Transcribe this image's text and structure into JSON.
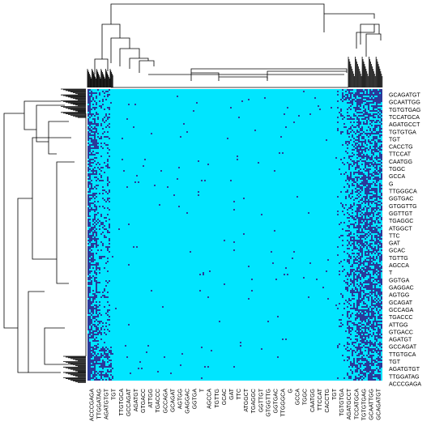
{
  "chart_data": {
    "type": "heatmap",
    "title": "",
    "xlabel": "",
    "ylabel": "",
    "colors": {
      "background": "#00e5ff",
      "hit": "#2a3a9a",
      "dendrogram": "#000000"
    },
    "x_labels": [
      "ACCCGAGA",
      "TTGGATAG",
      "AGATGTGT",
      "TGT",
      "TTGTGCA",
      "GCCAGAT",
      "AGATGT",
      "GTGACC",
      "ATTGG",
      "TGACCC",
      "GCCAGA",
      "GCAGAT",
      "AGTGG",
      "GAGGAC",
      "GGTGA",
      "T",
      "AGCCA",
      "TGTTG",
      "GCAC",
      "GAT",
      "TTC",
      "ATGGCT",
      "TGAGGC",
      "GGTTGT",
      "GTGGTTG",
      "GGTGAC",
      "TTGGGCA",
      "G",
      "GCCA",
      "TGGC",
      "CAATGG",
      "TTCCAT",
      "CACCTG",
      "TGT",
      "TGTGTGA",
      "AGATGCCT",
      "TCCATGCA",
      "TGTGTGAG",
      "GCAATTGG",
      "GCAGATGT"
    ],
    "y_labels": [
      "GCAGATGT",
      "GCAATTGG",
      "TGTGTGAG",
      "TCCATGCA",
      "AGATGCCT",
      "TGTGTGA",
      "TGT",
      "CACCTG",
      "TTCCAT",
      "CAATGG",
      "TGGC",
      "GCCA",
      "G",
      "TTGGGCA",
      "GGTGAC",
      "GTGGTTG",
      "GGTTGT",
      "TGAGGC",
      "ATGGCT",
      "TTC",
      "GAT",
      "GCAC",
      "TGTTG",
      "AGCCA",
      "T",
      "GGTGA",
      "GAGGAC",
      "AGTGG",
      "GCAGAT",
      "GCCAGA",
      "TGACCC",
      "ATTGG",
      "GTGACC",
      "AGATGT",
      "GCCAGAT",
      "TTGTGCA",
      "TGT",
      "AGATGTGT",
      "TTGGATAG",
      "ACCCGAGA"
    ]
  }
}
